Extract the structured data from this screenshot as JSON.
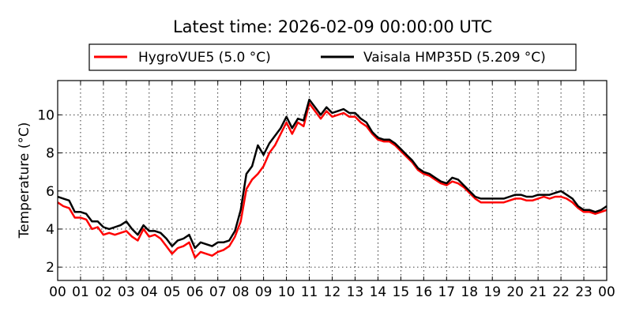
{
  "chart_data": {
    "type": "line",
    "title": "Latest time: 2026-02-09 00:00:00 UTC",
    "xlabel": "",
    "ylabel": "Temperature (°C)",
    "xlim": [
      0,
      24
    ],
    "ylim": [
      1.3,
      11.8
    ],
    "x_tick_labels": [
      "00",
      "01",
      "02",
      "03",
      "04",
      "05",
      "06",
      "07",
      "08",
      "09",
      "10",
      "11",
      "12",
      "13",
      "14",
      "15",
      "16",
      "17",
      "18",
      "19",
      "20",
      "21",
      "22",
      "23",
      "00"
    ],
    "y_ticks": [
      2,
      4,
      6,
      8,
      10
    ],
    "y_tick_labels": [
      "2",
      "4",
      "6",
      "8",
      "10"
    ],
    "grid": true,
    "legend_placement": "top-center, above plot",
    "series": [
      {
        "name": "HygroVUE5 (5.0 °C)",
        "color": "#ff0000",
        "points": [
          [
            0,
            5.4
          ],
          [
            0.25,
            5.2
          ],
          [
            0.5,
            5.1
          ],
          [
            0.75,
            4.6
          ],
          [
            1,
            4.6
          ],
          [
            1.25,
            4.5
          ],
          [
            1.5,
            4.0
          ],
          [
            1.75,
            4.1
          ],
          [
            2,
            3.7
          ],
          [
            2.25,
            3.8
          ],
          [
            2.5,
            3.7
          ],
          [
            2.75,
            3.8
          ],
          [
            3,
            3.9
          ],
          [
            3.25,
            3.6
          ],
          [
            3.5,
            3.4
          ],
          [
            3.75,
            4.0
          ],
          [
            4,
            3.6
          ],
          [
            4.25,
            3.7
          ],
          [
            4.5,
            3.5
          ],
          [
            4.75,
            3.1
          ],
          [
            5,
            2.7
          ],
          [
            5.25,
            3.0
          ],
          [
            5.5,
            3.1
          ],
          [
            5.75,
            3.3
          ],
          [
            6,
            2.5
          ],
          [
            6.25,
            2.8
          ],
          [
            6.5,
            2.7
          ],
          [
            6.75,
            2.6
          ],
          [
            7,
            2.8
          ],
          [
            7.25,
            2.9
          ],
          [
            7.5,
            3.1
          ],
          [
            7.75,
            3.6
          ],
          [
            8,
            4.4
          ],
          [
            8.25,
            6.1
          ],
          [
            8.5,
            6.6
          ],
          [
            8.75,
            6.9
          ],
          [
            9,
            7.3
          ],
          [
            9.25,
            8.0
          ],
          [
            9.5,
            8.4
          ],
          [
            9.75,
            9.0
          ],
          [
            10,
            9.6
          ],
          [
            10.25,
            9.0
          ],
          [
            10.5,
            9.6
          ],
          [
            10.75,
            9.4
          ],
          [
            11,
            10.6
          ],
          [
            11.25,
            10.2
          ],
          [
            11.5,
            9.8
          ],
          [
            11.75,
            10.2
          ],
          [
            12,
            9.9
          ],
          [
            12.25,
            10.0
          ],
          [
            12.5,
            10.1
          ],
          [
            12.75,
            9.9
          ],
          [
            13,
            9.9
          ],
          [
            13.25,
            9.6
          ],
          [
            13.5,
            9.4
          ],
          [
            13.75,
            9.0
          ],
          [
            14,
            8.7
          ],
          [
            14.25,
            8.6
          ],
          [
            14.5,
            8.6
          ],
          [
            14.75,
            8.4
          ],
          [
            15,
            8.1
          ],
          [
            15.25,
            7.8
          ],
          [
            15.5,
            7.5
          ],
          [
            15.75,
            7.1
          ],
          [
            16,
            6.9
          ],
          [
            16.25,
            6.8
          ],
          [
            16.5,
            6.6
          ],
          [
            16.75,
            6.4
          ],
          [
            17,
            6.3
          ],
          [
            17.25,
            6.5
          ],
          [
            17.5,
            6.4
          ],
          [
            17.75,
            6.2
          ],
          [
            18,
            5.9
          ],
          [
            18.25,
            5.6
          ],
          [
            18.5,
            5.4
          ],
          [
            18.75,
            5.4
          ],
          [
            19,
            5.4
          ],
          [
            19.25,
            5.4
          ],
          [
            19.5,
            5.4
          ],
          [
            19.75,
            5.5
          ],
          [
            20,
            5.6
          ],
          [
            20.25,
            5.6
          ],
          [
            20.5,
            5.5
          ],
          [
            20.75,
            5.5
          ],
          [
            21,
            5.6
          ],
          [
            21.25,
            5.7
          ],
          [
            21.5,
            5.6
          ],
          [
            21.75,
            5.7
          ],
          [
            22,
            5.7
          ],
          [
            22.25,
            5.6
          ],
          [
            22.5,
            5.4
          ],
          [
            22.75,
            5.1
          ],
          [
            23,
            4.9
          ],
          [
            23.25,
            4.9
          ],
          [
            23.5,
            4.8
          ],
          [
            23.75,
            4.9
          ],
          [
            24,
            5.0
          ]
        ]
      },
      {
        "name": "Vaisala HMP35D (5.209 °C)",
        "color": "#000000",
        "points": [
          [
            0,
            5.7
          ],
          [
            0.25,
            5.6
          ],
          [
            0.5,
            5.5
          ],
          [
            0.75,
            4.9
          ],
          [
            1,
            4.9
          ],
          [
            1.25,
            4.8
          ],
          [
            1.5,
            4.4
          ],
          [
            1.75,
            4.4
          ],
          [
            2,
            4.1
          ],
          [
            2.25,
            4.0
          ],
          [
            2.5,
            4.1
          ],
          [
            2.75,
            4.2
          ],
          [
            3,
            4.4
          ],
          [
            3.25,
            4.0
          ],
          [
            3.5,
            3.7
          ],
          [
            3.75,
            4.2
          ],
          [
            4,
            3.9
          ],
          [
            4.25,
            3.9
          ],
          [
            4.5,
            3.8
          ],
          [
            4.75,
            3.5
          ],
          [
            5,
            3.1
          ],
          [
            5.25,
            3.4
          ],
          [
            5.5,
            3.5
          ],
          [
            5.75,
            3.7
          ],
          [
            6,
            3.0
          ],
          [
            6.25,
            3.3
          ],
          [
            6.5,
            3.2
          ],
          [
            6.75,
            3.1
          ],
          [
            7,
            3.3
          ],
          [
            7.25,
            3.3
          ],
          [
            7.5,
            3.4
          ],
          [
            7.75,
            3.9
          ],
          [
            8,
            5.0
          ],
          [
            8.25,
            6.9
          ],
          [
            8.5,
            7.3
          ],
          [
            8.75,
            8.4
          ],
          [
            9,
            7.9
          ],
          [
            9.25,
            8.5
          ],
          [
            9.5,
            8.9
          ],
          [
            9.75,
            9.3
          ],
          [
            10,
            9.9
          ],
          [
            10.25,
            9.3
          ],
          [
            10.5,
            9.8
          ],
          [
            10.75,
            9.7
          ],
          [
            11,
            10.8
          ],
          [
            11.25,
            10.4
          ],
          [
            11.5,
            10.0
          ],
          [
            11.75,
            10.4
          ],
          [
            12,
            10.1
          ],
          [
            12.25,
            10.2
          ],
          [
            12.5,
            10.3
          ],
          [
            12.75,
            10.1
          ],
          [
            13,
            10.1
          ],
          [
            13.25,
            9.8
          ],
          [
            13.5,
            9.6
          ],
          [
            13.75,
            9.1
          ],
          [
            14,
            8.8
          ],
          [
            14.25,
            8.7
          ],
          [
            14.5,
            8.7
          ],
          [
            14.75,
            8.5
          ],
          [
            15,
            8.2
          ],
          [
            15.25,
            7.9
          ],
          [
            15.5,
            7.6
          ],
          [
            15.75,
            7.2
          ],
          [
            16,
            7.0
          ],
          [
            16.25,
            6.9
          ],
          [
            16.5,
            6.7
          ],
          [
            16.75,
            6.5
          ],
          [
            17,
            6.4
          ],
          [
            17.25,
            6.7
          ],
          [
            17.5,
            6.6
          ],
          [
            17.75,
            6.3
          ],
          [
            18,
            6.0
          ],
          [
            18.25,
            5.7
          ],
          [
            18.5,
            5.6
          ],
          [
            18.75,
            5.6
          ],
          [
            19,
            5.6
          ],
          [
            19.25,
            5.6
          ],
          [
            19.5,
            5.6
          ],
          [
            19.75,
            5.7
          ],
          [
            20,
            5.8
          ],
          [
            20.25,
            5.8
          ],
          [
            20.5,
            5.7
          ],
          [
            20.75,
            5.7
          ],
          [
            21,
            5.8
          ],
          [
            21.25,
            5.8
          ],
          [
            21.5,
            5.8
          ],
          [
            21.75,
            5.9
          ],
          [
            22,
            6.0
          ],
          [
            22.25,
            5.8
          ],
          [
            22.5,
            5.6
          ],
          [
            22.75,
            5.2
          ],
          [
            23,
            5.0
          ],
          [
            23.25,
            5.0
          ],
          [
            23.5,
            4.9
          ],
          [
            23.75,
            5.0
          ],
          [
            24,
            5.2
          ]
        ]
      }
    ]
  }
}
